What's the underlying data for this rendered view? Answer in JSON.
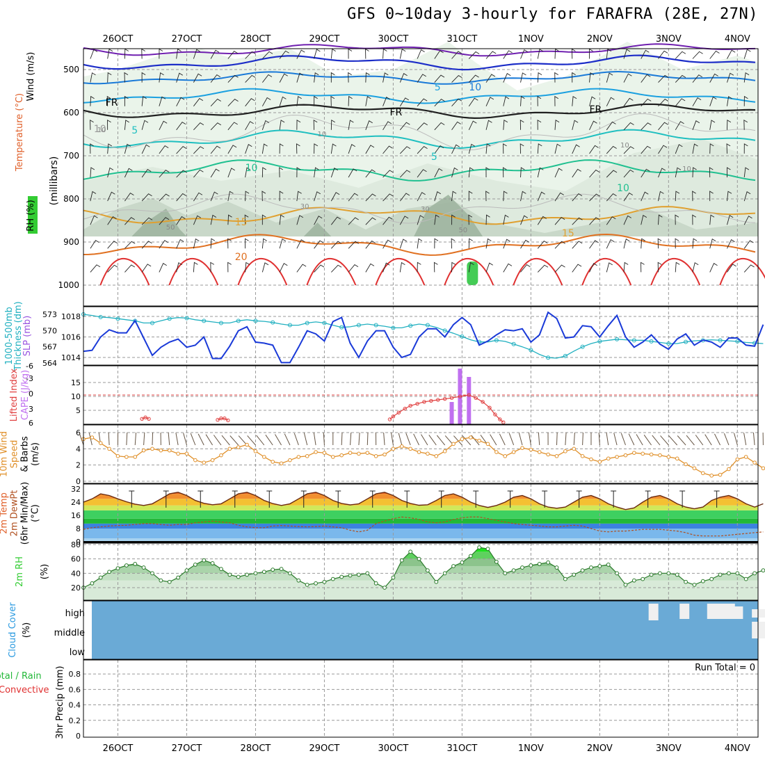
{
  "title": "GFS 0~10day 3-hourly for FARAFRA (28E, 27N)",
  "colors": {
    "temperature": "#e03030",
    "wind_label": "#000000",
    "rh_green": "#33cc33",
    "thickness": "#20b0c0",
    "slp": "#1a3ad8",
    "lifted_index": "#e04040",
    "cape": "#c070f0",
    "wind_speed": "#e0902a",
    "cloud": "#6aaad6",
    "conv": "#e03030",
    "grid": "#aaaaaa"
  },
  "chart_data": {
    "type": "meteogram",
    "x_axis": {
      "dates": [
        "26OCT",
        "27OCT",
        "28OCT",
        "29OCT",
        "30OCT",
        "31OCT",
        "1NOV",
        "2NOV",
        "3NOV",
        "4NOV"
      ],
      "range_days": [
        -0.5,
        9.3
      ]
    },
    "panels": {
      "profile": {
        "y_labels": [
          "Temperature (°C)",
          "Wind (m/s)",
          "RH (%)",
          "(millibars)"
        ],
        "yticks": [
          500,
          600,
          700,
          800,
          900,
          1000
        ],
        "ylim": [
          1000,
          450
        ],
        "contour_labels": [
          "10",
          "5",
          "5",
          "10",
          "FR",
          "FR",
          "FR",
          "5",
          "10",
          "10",
          "15",
          "15",
          "20"
        ],
        "rh_labels": [
          "10",
          "10",
          "10",
          "10",
          "50",
          "30",
          "30",
          "50"
        ]
      },
      "pressure": {
        "y_labels": [
          "1000-500mb",
          "Thickness (dm)",
          "SLP (mb)"
        ],
        "thickness_ticks": [
          564,
          567,
          570,
          573
        ],
        "slp_ticks": [
          1014,
          1016,
          1018
        ],
        "slp": [
          1014.6,
          1014.7,
          1016.0,
          1016.7,
          1016.4,
          1016.4,
          1017.6,
          1015.9,
          1014.2,
          1015.0,
          1015.5,
          1015.8,
          1015.0,
          1015.2,
          1016.0,
          1013.9,
          1013.9,
          1015.1,
          1016.6,
          1017.0,
          1015.5,
          1015.4,
          1015.2,
          1013.5,
          1013.5,
          1015.0,
          1016.6,
          1016.3,
          1015.6,
          1017.5,
          1017.9,
          1015.4,
          1014.0,
          1015.6,
          1016.6,
          1016.6,
          1015.0,
          1014.0,
          1014.3,
          1016.0,
          1016.8,
          1016.8,
          1016.0,
          1017.2,
          1017.9,
          1017.2,
          1015.2,
          1015.6,
          1016.2,
          1016.7,
          1016.6,
          1016.8,
          1015.5,
          1016.2,
          1018.4,
          1017.8,
          1015.9,
          1016.0,
          1017.1,
          1017.0,
          1016.0,
          1017.1,
          1018.1,
          1016.0,
          1015.0,
          1015.5,
          1016.2,
          1015.3,
          1014.8,
          1015.8,
          1016.3,
          1015.2,
          1015.7,
          1015.5,
          1015.0,
          1015.9,
          1015.9,
          1015.2,
          1015.1,
          1017.2
        ],
        "thickness": [
          573.0,
          572.8,
          572.5,
          572.4,
          572.2,
          572.0,
          571.8,
          571.4,
          571.4,
          571.8,
          572.2,
          572.4,
          572.3,
          572.0,
          571.8,
          571.6,
          571.4,
          571.4,
          571.8,
          572.0,
          571.8,
          571.7,
          571.5,
          571.2,
          571.0,
          571.0,
          571.4,
          571.6,
          571.4,
          571.0,
          570.6,
          570.7,
          571.0,
          571.2,
          571.0,
          570.8,
          570.5,
          570.5,
          570.9,
          571.2,
          571.0,
          570.6,
          570.0,
          569.5,
          568.9,
          568.3,
          567.9,
          567.9,
          568.2,
          568.0,
          567.5,
          567.0,
          566.4,
          565.6,
          565.0,
          564.9,
          565.3,
          566.2,
          567.0,
          567.6,
          568.0,
          568.2,
          568.4,
          568.3,
          568.2,
          568.2,
          568.0,
          567.8,
          567.6,
          567.6,
          567.9,
          568.1,
          568.2,
          568.3,
          568.2,
          568.1,
          568.0,
          567.8,
          567.7,
          567.6
        ]
      },
      "stability": {
        "y_labels": [
          "Lifted Index",
          "CAPE (J/kg)"
        ],
        "li_ticks": [
          "-6",
          "-3",
          "0",
          "3",
          "6"
        ],
        "cape_ticks": [
          5,
          10,
          15
        ],
        "cape_bars": [
          {
            "t": 4.85,
            "v": 8
          },
          {
            "t": 4.97,
            "v": 20
          },
          {
            "t": 5.1,
            "v": 17
          }
        ],
        "lifted_index": [
          {
            "t": 0.35,
            "v": 4.9
          },
          {
            "t": 0.4,
            "v": 4.6
          },
          {
            "t": 0.45,
            "v": 4.9
          },
          {
            "t": 1.45,
            "v": 5.1
          },
          {
            "t": 1.5,
            "v": 4.8
          },
          {
            "t": 1.55,
            "v": 4.8
          },
          {
            "t": 1.6,
            "v": 5.2
          },
          {
            "t": 3.95,
            "v": 5.0
          },
          {
            "t": 4.0,
            "v": 4.4
          },
          {
            "t": 4.08,
            "v": 3.6
          },
          {
            "t": 4.17,
            "v": 2.8
          },
          {
            "t": 4.25,
            "v": 2.2
          },
          {
            "t": 4.35,
            "v": 1.8
          },
          {
            "t": 4.45,
            "v": 1.4
          },
          {
            "t": 4.55,
            "v": 1.2
          },
          {
            "t": 4.65,
            "v": 1.0
          },
          {
            "t": 4.75,
            "v": 0.8
          },
          {
            "t": 4.85,
            "v": 0.6
          },
          {
            "t": 4.97,
            "v": 0.3
          },
          {
            "t": 5.1,
            "v": 0.0
          },
          {
            "t": 5.2,
            "v": 0.6
          },
          {
            "t": 5.3,
            "v": 1.4
          },
          {
            "t": 5.4,
            "v": 2.6
          },
          {
            "t": 5.48,
            "v": 4.0
          },
          {
            "t": 5.55,
            "v": 5.0
          },
          {
            "t": 5.6,
            "v": 5.6
          }
        ]
      },
      "wind10m": {
        "y_labels": [
          "10m Wind",
          "Speed",
          "& Barbs",
          "(m/s)"
        ],
        "yticks": [
          0,
          2,
          4,
          6
        ],
        "speed": [
          5.2,
          5.4,
          4.7,
          4.0,
          3.1,
          3.0,
          3.0,
          3.8,
          4.0,
          3.8,
          3.8,
          3.4,
          3.4,
          2.6,
          2.3,
          2.6,
          3.2,
          4.0,
          4.2,
          4.5,
          3.7,
          3.0,
          2.4,
          2.2,
          2.6,
          3.0,
          3.1,
          3.6,
          3.5,
          3.0,
          3.2,
          3.5,
          3.4,
          3.5,
          3.1,
          3.3,
          4.0,
          4.3,
          4.0,
          3.6,
          3.4,
          3.1,
          3.7,
          4.6,
          5.2,
          5.4,
          5.0,
          4.6,
          3.6,
          3.1,
          3.6,
          4.1,
          3.9,
          3.6,
          3.3,
          3.1,
          3.7,
          4.0,
          3.1,
          2.7,
          2.4,
          2.8,
          3.0,
          3.2,
          3.5,
          3.4,
          3.3,
          3.2,
          3.0,
          2.8,
          2.1,
          1.6,
          1.0,
          0.7,
          0.8,
          1.5,
          2.7,
          3.0,
          2.3,
          1.6
        ]
      },
      "temperature": {
        "y_labels": [
          "2m Temp",
          "2m DewPt",
          "(6hr Min/Max)",
          "(°C)"
        ],
        "yticks": [
          0,
          8,
          16,
          24,
          32
        ],
        "temp": [
          24.0,
          26.0,
          29.0,
          28.0,
          26.0,
          24.2,
          22.8,
          22.0,
          23.0,
          26.0,
          29.0,
          30.0,
          28.0,
          25.0,
          23.3,
          22.4,
          23.0,
          26.0,
          29.0,
          30.0,
          28.0,
          25.0,
          23.1,
          22.0,
          23.0,
          26.0,
          29.0,
          30.0,
          28.0,
          25.0,
          23.2,
          22.3,
          23.0,
          26.0,
          29.0,
          30.0,
          28.0,
          25.0,
          23.2,
          22.1,
          22.4,
          25.0,
          28.0,
          29.0,
          27.0,
          24.0,
          22.0,
          20.8,
          22.0,
          24.0,
          27.0,
          28.0,
          26.0,
          23.0,
          21.0,
          20.3,
          21.0,
          24.0,
          27.0,
          28.0,
          26.0,
          23.0,
          21.0,
          19.5,
          20.5,
          24.0,
          27.0,
          28.0,
          26.0,
          23.0,
          21.0,
          20.0,
          21.0,
          25.0,
          27.0,
          28.0,
          26.0,
          23.0,
          21.0,
          23.0
        ],
        "dewpoint": [
          7.5,
          8.5,
          9.0,
          9.5,
          9.8,
          10.0,
          10.5,
          11.0,
          11.0,
          10.5,
          10.0,
          10.5,
          10.5,
          11.5,
          12.0,
          12.5,
          12.0,
          11.5,
          10.0,
          9.0,
          8.5,
          8.5,
          9.5,
          9.8,
          9.5,
          9.2,
          9.0,
          9.2,
          9.5,
          9.0,
          8.5,
          7.0,
          6.0,
          7.0,
          11.0,
          12.5,
          14.0,
          15.0,
          14.5,
          13.5,
          12.0,
          11.5,
          12.0,
          13.5,
          14.5,
          15.0,
          15.0,
          14.0,
          13.0,
          12.0,
          11.0,
          10.5,
          10.0,
          9.5,
          9.0,
          9.0,
          9.5,
          10.0,
          9.5,
          8.0,
          6.5,
          6.0,
          6.5,
          6.5,
          7.0,
          7.5,
          7.5,
          7.5,
          7.0,
          6.5,
          5.5,
          4.0,
          3.5,
          3.5,
          3.5,
          4.0,
          4.5,
          5.0,
          5.5,
          6.0
        ]
      },
      "rh": {
        "y_labels": [
          "2m RH",
          "(%)"
        ],
        "yticks": [
          20,
          40,
          60,
          80
        ],
        "rh": [
          20,
          26,
          34,
          42,
          47,
          51,
          53,
          48,
          40,
          30,
          28,
          34,
          44,
          52,
          58,
          54,
          46,
          38,
          35,
          38,
          40,
          42,
          45,
          46,
          40,
          30,
          24,
          26,
          28,
          32,
          35,
          37,
          38,
          40,
          26,
          20,
          34,
          58,
          70,
          60,
          44,
          28,
          40,
          50,
          55,
          64,
          76,
          74,
          56,
          40,
          44,
          48,
          51,
          53,
          55,
          48,
          32,
          38,
          44,
          48,
          50,
          52,
          40,
          24,
          30,
          32,
          38,
          40,
          40,
          38,
          28,
          24,
          29,
          32,
          38,
          40,
          40,
          32,
          40,
          44
        ]
      },
      "cloud": {
        "y_labels": [
          "Cloud Cover",
          "(%)"
        ],
        "levels": [
          "high",
          "middle",
          "low"
        ]
      },
      "precip": {
        "y_labels": [
          "Total / Rain",
          "Convective",
          "3hr Precip (mm)"
        ],
        "yticks": [
          "0",
          "0.2",
          "0.4",
          "0.6",
          "0.8"
        ],
        "run_total": "Run Total = 0"
      }
    }
  }
}
